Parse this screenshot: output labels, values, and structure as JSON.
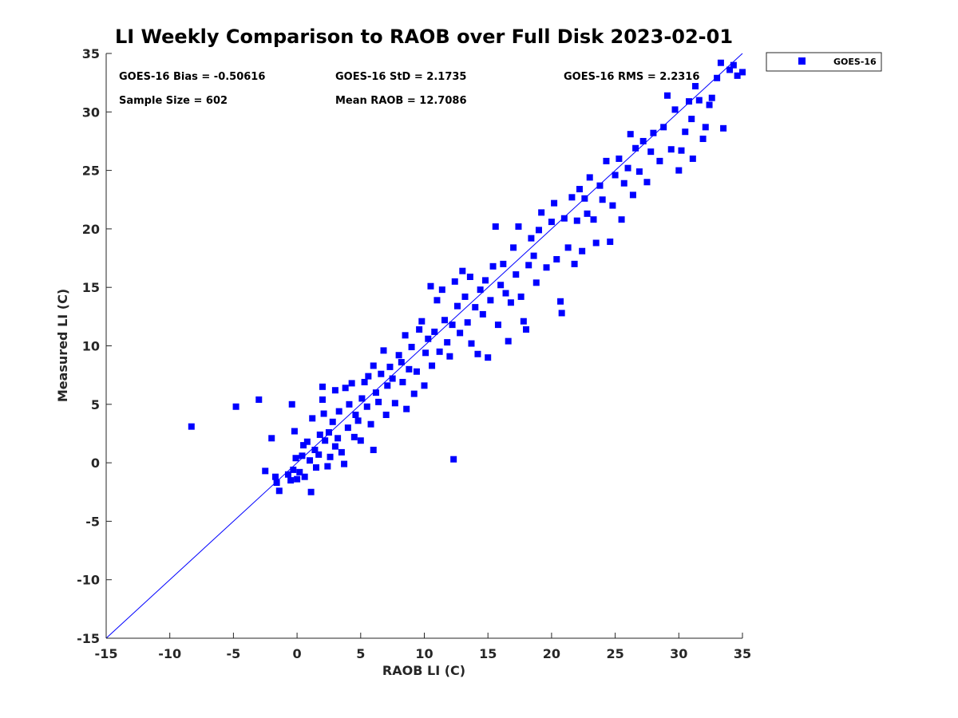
{
  "chart_data": {
    "type": "scatter",
    "title": "LI Weekly Comparison to RAOB over Full Disk 2023-02-01",
    "xlabel": "RAOB LI (C)",
    "ylabel": "Measured LI (C)",
    "xlim": [
      -15,
      35
    ],
    "ylim": [
      -15,
      35
    ],
    "xticks": [
      "-15",
      "-10",
      "-5",
      "0",
      "5",
      "10",
      "15",
      "20",
      "25",
      "30",
      "35"
    ],
    "yticks": [
      "-15",
      "-10",
      "-5",
      "0",
      "5",
      "10",
      "15",
      "20",
      "25",
      "30",
      "35"
    ],
    "reference_line": {
      "name": "1:1 line",
      "x": [
        -15,
        35
      ],
      "y": [
        -15,
        35
      ],
      "color": "#0000ff"
    },
    "legend": {
      "position": "top-right-outside",
      "entries": [
        "GOES-16"
      ]
    },
    "stats": {
      "bias": "GOES-16 Bias = -0.50616",
      "std": "GOES-16 StD = 2.1735",
      "rms": "GOES-16 RMS = 2.2316",
      "sample_size": "Sample Size = 602",
      "mean_raob": "Mean RAOB = 12.7086"
    },
    "series": [
      {
        "name": "GOES-16",
        "color": "#0000ff",
        "marker": "square",
        "points": [
          [
            -8.3,
            3.1
          ],
          [
            -4.8,
            4.8
          ],
          [
            -3.0,
            5.4
          ],
          [
            -2.0,
            2.1
          ],
          [
            -2.5,
            -0.7
          ],
          [
            -1.7,
            -1.2
          ],
          [
            -1.6,
            -1.7
          ],
          [
            -1.4,
            -2.4
          ],
          [
            -0.7,
            -1.0
          ],
          [
            -0.5,
            -1.5
          ],
          [
            -0.3,
            -0.6
          ],
          [
            -0.2,
            2.7
          ],
          [
            -0.4,
            5.0
          ],
          [
            -0.1,
            0.4
          ],
          [
            0.0,
            -1.4
          ],
          [
            0.2,
            -0.8
          ],
          [
            0.4,
            0.6
          ],
          [
            0.5,
            1.5
          ],
          [
            0.6,
            -1.2
          ],
          [
            0.8,
            1.8
          ],
          [
            1.0,
            0.2
          ],
          [
            1.1,
            -2.5
          ],
          [
            1.2,
            3.8
          ],
          [
            1.4,
            1.1
          ],
          [
            1.5,
            -0.4
          ],
          [
            1.7,
            0.7
          ],
          [
            1.8,
            2.4
          ],
          [
            2.0,
            6.5
          ],
          [
            2.0,
            5.4
          ],
          [
            2.1,
            4.2
          ],
          [
            2.2,
            1.9
          ],
          [
            2.4,
            -0.3
          ],
          [
            2.5,
            2.6
          ],
          [
            2.6,
            0.5
          ],
          [
            2.8,
            3.5
          ],
          [
            3.0,
            6.2
          ],
          [
            3.0,
            1.4
          ],
          [
            3.2,
            2.1
          ],
          [
            3.3,
            4.4
          ],
          [
            3.5,
            0.9
          ],
          [
            3.7,
            -0.1
          ],
          [
            3.8,
            6.4
          ],
          [
            4.0,
            3.0
          ],
          [
            4.1,
            5.0
          ],
          [
            4.3,
            6.8
          ],
          [
            4.5,
            2.2
          ],
          [
            4.6,
            4.1
          ],
          [
            4.8,
            3.6
          ],
          [
            5.0,
            1.9
          ],
          [
            5.1,
            5.5
          ],
          [
            5.3,
            6.9
          ],
          [
            5.5,
            4.8
          ],
          [
            5.6,
            7.4
          ],
          [
            5.8,
            3.3
          ],
          [
            6.0,
            8.3
          ],
          [
            6.0,
            1.1
          ],
          [
            6.2,
            6.0
          ],
          [
            6.4,
            5.2
          ],
          [
            6.6,
            7.6
          ],
          [
            6.8,
            9.6
          ],
          [
            7.0,
            4.1
          ],
          [
            7.1,
            6.6
          ],
          [
            7.3,
            8.2
          ],
          [
            7.5,
            7.2
          ],
          [
            7.7,
            5.1
          ],
          [
            8.0,
            9.2
          ],
          [
            8.2,
            8.6
          ],
          [
            8.3,
            6.9
          ],
          [
            8.5,
            10.9
          ],
          [
            8.6,
            4.6
          ],
          [
            8.8,
            8.0
          ],
          [
            9.0,
            9.9
          ],
          [
            9.2,
            5.9
          ],
          [
            9.4,
            7.8
          ],
          [
            9.6,
            11.4
          ],
          [
            9.8,
            12.1
          ],
          [
            10.0,
            6.6
          ],
          [
            10.1,
            9.4
          ],
          [
            10.3,
            10.6
          ],
          [
            10.5,
            15.1
          ],
          [
            10.6,
            8.3
          ],
          [
            10.8,
            11.2
          ],
          [
            11.0,
            13.9
          ],
          [
            11.2,
            9.5
          ],
          [
            11.4,
            14.8
          ],
          [
            11.6,
            12.2
          ],
          [
            11.8,
            10.3
          ],
          [
            12.0,
            9.1
          ],
          [
            12.2,
            11.8
          ],
          [
            12.4,
            15.5
          ],
          [
            12.3,
            0.3
          ],
          [
            12.6,
            13.4
          ],
          [
            12.8,
            11.1
          ],
          [
            13.0,
            16.4
          ],
          [
            13.2,
            14.2
          ],
          [
            13.4,
            12.0
          ],
          [
            13.6,
            15.9
          ],
          [
            13.7,
            10.2
          ],
          [
            14.0,
            13.3
          ],
          [
            14.2,
            9.3
          ],
          [
            14.4,
            14.8
          ],
          [
            14.6,
            12.7
          ],
          [
            14.8,
            15.6
          ],
          [
            15.0,
            9.0
          ],
          [
            15.2,
            13.9
          ],
          [
            15.4,
            16.8
          ],
          [
            15.6,
            20.2
          ],
          [
            15.8,
            11.8
          ],
          [
            16.0,
            15.2
          ],
          [
            16.2,
            17.0
          ],
          [
            16.4,
            14.5
          ],
          [
            16.6,
            10.4
          ],
          [
            16.8,
            13.7
          ],
          [
            17.0,
            18.4
          ],
          [
            17.2,
            16.1
          ],
          [
            17.4,
            20.2
          ],
          [
            17.6,
            14.2
          ],
          [
            17.8,
            12.1
          ],
          [
            18.0,
            11.4
          ],
          [
            18.2,
            16.9
          ],
          [
            18.4,
            19.2
          ],
          [
            18.6,
            17.7
          ],
          [
            18.8,
            15.4
          ],
          [
            19.0,
            19.9
          ],
          [
            19.2,
            21.4
          ],
          [
            19.6,
            16.7
          ],
          [
            20.0,
            20.6
          ],
          [
            20.2,
            22.2
          ],
          [
            20.4,
            17.4
          ],
          [
            20.7,
            13.8
          ],
          [
            20.8,
            12.8
          ],
          [
            21.0,
            20.9
          ],
          [
            21.3,
            18.4
          ],
          [
            21.6,
            22.7
          ],
          [
            21.8,
            17.0
          ],
          [
            22.0,
            20.7
          ],
          [
            22.2,
            23.4
          ],
          [
            22.4,
            18.1
          ],
          [
            22.6,
            22.6
          ],
          [
            22.8,
            21.3
          ],
          [
            23.0,
            24.4
          ],
          [
            23.3,
            20.8
          ],
          [
            23.5,
            18.8
          ],
          [
            23.8,
            23.7
          ],
          [
            24.0,
            22.5
          ],
          [
            24.3,
            25.8
          ],
          [
            24.6,
            18.9
          ],
          [
            24.8,
            22.0
          ],
          [
            25.0,
            24.6
          ],
          [
            25.3,
            26.0
          ],
          [
            25.5,
            20.8
          ],
          [
            25.7,
            23.9
          ],
          [
            26.0,
            25.2
          ],
          [
            26.2,
            28.1
          ],
          [
            26.4,
            22.9
          ],
          [
            26.6,
            26.9
          ],
          [
            26.9,
            24.9
          ],
          [
            27.2,
            27.5
          ],
          [
            27.5,
            24.0
          ],
          [
            27.8,
            26.6
          ],
          [
            28.0,
            28.2
          ],
          [
            28.5,
            25.8
          ],
          [
            28.8,
            28.7
          ],
          [
            29.1,
            31.4
          ],
          [
            29.4,
            26.8
          ],
          [
            29.7,
            30.2
          ],
          [
            30.0,
            25.0
          ],
          [
            30.2,
            26.7
          ],
          [
            30.5,
            28.3
          ],
          [
            30.8,
            30.9
          ],
          [
            31.0,
            29.4
          ],
          [
            31.1,
            26.0
          ],
          [
            31.3,
            32.2
          ],
          [
            31.6,
            31.0
          ],
          [
            31.9,
            27.7
          ],
          [
            32.1,
            28.7
          ],
          [
            32.4,
            30.6
          ],
          [
            32.6,
            31.2
          ],
          [
            33.0,
            32.9
          ],
          [
            33.3,
            34.2
          ],
          [
            33.5,
            28.6
          ],
          [
            34.0,
            33.6
          ],
          [
            34.3,
            34.0
          ],
          [
            34.6,
            33.1
          ],
          [
            35.0,
            33.4
          ]
        ]
      }
    ]
  }
}
